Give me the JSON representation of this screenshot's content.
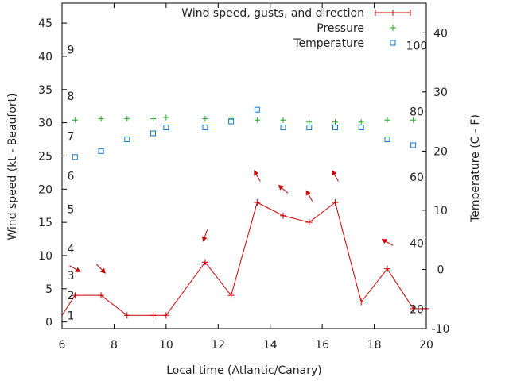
{
  "chart_data": {
    "type": "line",
    "xlabel": "Local time (Atlantic/Canary)",
    "ylabel_left": "Wind speed (kt - Beaufort)",
    "ylabel_right": "Temperature (C - F)",
    "xlim": [
      6,
      20
    ],
    "ylim_left": [
      -1,
      48
    ],
    "ylim_right": [
      -10,
      45
    ],
    "x_ticks": [
      6,
      8,
      10,
      12,
      14,
      16,
      18,
      20
    ],
    "y_left_ticks": [
      0,
      5,
      10,
      15,
      20,
      25,
      30,
      35,
      40,
      45
    ],
    "y_right_ticks": [
      -10,
      0,
      10,
      20,
      30,
      40
    ],
    "beaufort_labels": [
      {
        "label": "1",
        "kt": 1
      },
      {
        "label": "2",
        "kt": 4
      },
      {
        "label": "3",
        "kt": 7
      },
      {
        "label": "4",
        "kt": 11
      },
      {
        "label": "5",
        "kt": 17
      },
      {
        "label": "6",
        "kt": 22
      },
      {
        "label": "7",
        "kt": 28
      },
      {
        "label": "8",
        "kt": 34
      },
      {
        "label": "9",
        "kt": 41
      }
    ],
    "fahrenheit_labels": [
      {
        "label": "20",
        "c": -6.7
      },
      {
        "label": "40",
        "c": 4.4
      },
      {
        "label": "60",
        "c": 15.6
      },
      {
        "label": "80",
        "c": 26.7
      },
      {
        "label": "100",
        "c": 37.8
      }
    ],
    "legend": [
      {
        "name": "Wind speed, gusts, and direction",
        "color": "#cc0000",
        "marker": "line-plus"
      },
      {
        "name": "Pressure",
        "color": "#22aa22",
        "marker": "plus"
      },
      {
        "name": "Temperature",
        "color": "#1177cc",
        "marker": "square"
      }
    ],
    "series": [
      {
        "name": "Wind speed, gusts, and direction",
        "color": "#cc0000",
        "axis": "left",
        "x": [
          5.5,
          6.5,
          7.5,
          8.5,
          9.5,
          10.0,
          11.5,
          12.5,
          13.5,
          14.5,
          15.5,
          16.5,
          17.5,
          18.5,
          19.5,
          20.0
        ],
        "y": [
          1,
          4,
          4,
          1,
          1,
          1,
          9,
          4,
          18,
          16,
          15,
          18,
          3,
          8,
          2,
          2
        ]
      },
      {
        "name": "Pressure",
        "color": "#22aa22",
        "axis": "left",
        "x": [
          6.5,
          7.5,
          8.5,
          9.5,
          10.0,
          11.5,
          12.5,
          13.5,
          14.5,
          15.5,
          16.5,
          17.5,
          18.5,
          19.5
        ],
        "y": [
          30.4,
          30.6,
          30.6,
          30.6,
          30.8,
          30.6,
          30.6,
          30.4,
          30.4,
          30.1,
          30.1,
          30.1,
          30.4,
          30.4
        ]
      },
      {
        "name": "Temperature",
        "color": "#1177cc",
        "axis": "right",
        "x": [
          6.5,
          7.5,
          8.5,
          9.5,
          10.0,
          11.5,
          12.5,
          13.5,
          14.5,
          15.5,
          16.5,
          17.5,
          18.5,
          19.5
        ],
        "y": [
          19,
          20,
          22,
          23,
          24,
          24,
          25,
          27,
          24,
          24,
          24,
          24,
          22,
          21
        ]
      }
    ],
    "wind_direction_arrows": [
      {
        "x": 6.5,
        "y": 8,
        "dir_deg": 120
      },
      {
        "x": 7.5,
        "y": 8,
        "dir_deg": 135
      },
      {
        "x": 11.5,
        "y": 13,
        "dir_deg": 200
      },
      {
        "x": 13.5,
        "y": 22,
        "dir_deg": 330
      },
      {
        "x": 14.5,
        "y": 20,
        "dir_deg": 310
      },
      {
        "x": 15.5,
        "y": 19,
        "dir_deg": 330
      },
      {
        "x": 16.5,
        "y": 22,
        "dir_deg": 330
      },
      {
        "x": 18.5,
        "y": 12,
        "dir_deg": 300
      }
    ]
  }
}
